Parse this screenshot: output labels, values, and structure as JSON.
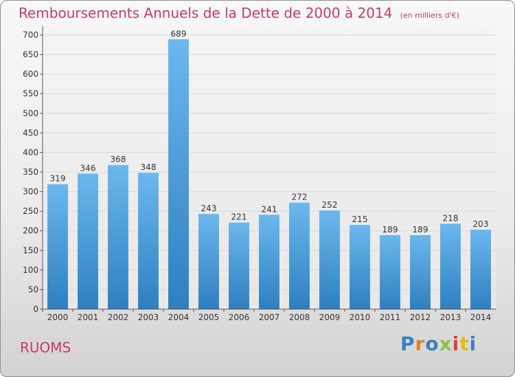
{
  "title": "Remboursements Annuels de la Dette de 2000 à 2014",
  "subtitle": "(en milliers d'€)",
  "commune": "RUOMS",
  "logo": {
    "text": "Proxiti",
    "colors": [
      "#3a7fc1",
      "#e0822a",
      "#3a7fc1",
      "#8bc34a",
      "#e04040",
      "#e0c000",
      "#3a7fc1"
    ]
  },
  "colors": {
    "title": "#c9386a",
    "bar_top": "#6bb8ee",
    "bar_bottom": "#2f7fc0",
    "grid": "#d9d9d9"
  },
  "chart_data": {
    "type": "bar",
    "categories": [
      "2000",
      "2001",
      "2002",
      "2003",
      "2004",
      "2005",
      "2006",
      "2007",
      "2008",
      "2009",
      "2010",
      "2011",
      "2012",
      "2013",
      "2014"
    ],
    "values": [
      319,
      346,
      368,
      348,
      689,
      243,
      221,
      241,
      272,
      252,
      215,
      189,
      189,
      218,
      203
    ],
    "ylim": [
      0,
      700
    ],
    "yticks": [
      0,
      50,
      100,
      150,
      200,
      250,
      300,
      350,
      400,
      450,
      500,
      550,
      600,
      650,
      700
    ],
    "grid": true,
    "data_labels": true
  }
}
